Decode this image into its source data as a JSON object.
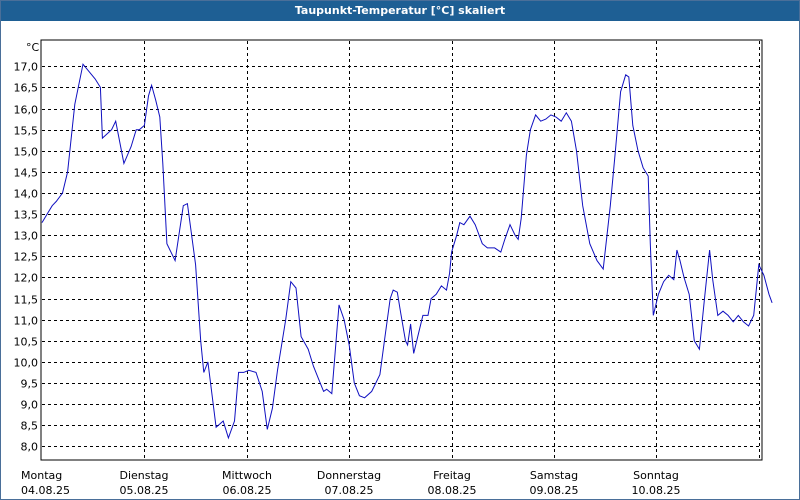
{
  "window": {
    "title": "Taupunkt-Temperatur [°C] skaliert"
  },
  "colors": {
    "title_bar": "#1e5f94",
    "line": "#1010c0",
    "grid": "#000000"
  },
  "chart_data": {
    "type": "line",
    "title": "Taupunkt-Temperatur [°C] skaliert",
    "ylabel": "°C",
    "ylim": [
      7.7,
      17.6
    ],
    "xlim": [
      0,
      7
    ],
    "grid": true,
    "yticks": [
      8.0,
      8.5,
      9.0,
      9.5,
      10.0,
      10.5,
      11.0,
      11.5,
      12.0,
      12.5,
      13.0,
      13.5,
      14.0,
      14.5,
      15.0,
      15.5,
      16.0,
      16.5,
      17.0
    ],
    "ytick_labels": [
      "8,0",
      "8,5",
      "9,0",
      "9,5",
      "10,0",
      "10,5",
      "11,0",
      "11,5",
      "12,0",
      "12,5",
      "13,0",
      "13,5",
      "14,0",
      "14,5",
      "15,0",
      "15,5",
      "16,0",
      "16,5",
      "17,0"
    ],
    "xticks": [
      {
        "day": "Montag",
        "date": "04.08.25"
      },
      {
        "day": "Dienstag",
        "date": "05.08.25"
      },
      {
        "day": "Mittwoch",
        "date": "06.08.25"
      },
      {
        "day": "Donnerstag",
        "date": "07.08.25"
      },
      {
        "day": "Freitag",
        "date": "08.08.25"
      },
      {
        "day": "Samstag",
        "date": "09.08.25"
      },
      {
        "day": "Sonntag",
        "date": "10.08.25"
      }
    ],
    "series": [
      {
        "values": [
          [
            0.0,
            13.3
          ],
          [
            0.05,
            13.5
          ],
          [
            0.1,
            13.7
          ],
          [
            0.14,
            13.8
          ],
          [
            0.2,
            14.0
          ],
          [
            0.25,
            14.5
          ],
          [
            0.32,
            16.1
          ],
          [
            0.4,
            17.05
          ],
          [
            0.52,
            16.7
          ],
          [
            0.57,
            16.5
          ],
          [
            0.59,
            15.3
          ],
          [
            0.68,
            15.5
          ],
          [
            0.72,
            15.7
          ],
          [
            0.8,
            14.7
          ],
          [
            0.87,
            15.1
          ],
          [
            0.92,
            15.5
          ],
          [
            0.95,
            15.5
          ],
          [
            1.0,
            15.6
          ],
          [
            1.04,
            16.3
          ],
          [
            1.07,
            16.55
          ],
          [
            1.11,
            16.2
          ],
          [
            1.15,
            15.8
          ],
          [
            1.18,
            14.7
          ],
          [
            1.22,
            12.8
          ],
          [
            1.3,
            12.4
          ],
          [
            1.38,
            13.7
          ],
          [
            1.42,
            13.75
          ],
          [
            1.5,
            12.3
          ],
          [
            1.55,
            10.5
          ],
          [
            1.58,
            9.75
          ],
          [
            1.62,
            10.0
          ],
          [
            1.7,
            8.45
          ],
          [
            1.77,
            8.6
          ],
          [
            1.82,
            8.2
          ],
          [
            1.88,
            8.6
          ],
          [
            1.92,
            9.75
          ],
          [
            1.97,
            9.75
          ],
          [
            2.02,
            9.8
          ],
          [
            2.09,
            9.75
          ],
          [
            2.15,
            9.3
          ],
          [
            2.2,
            8.4
          ],
          [
            2.25,
            8.9
          ],
          [
            2.3,
            9.8
          ],
          [
            2.38,
            11.0
          ],
          [
            2.43,
            11.9
          ],
          [
            2.48,
            11.75
          ],
          [
            2.53,
            10.6
          ],
          [
            2.6,
            10.3
          ],
          [
            2.65,
            9.9
          ],
          [
            2.7,
            9.6
          ],
          [
            2.75,
            9.3
          ],
          [
            2.78,
            9.35
          ],
          [
            2.83,
            9.25
          ],
          [
            2.9,
            11.35
          ],
          [
            2.95,
            11.0
          ],
          [
            3.0,
            10.4
          ],
          [
            3.05,
            9.5
          ],
          [
            3.1,
            9.2
          ],
          [
            3.15,
            9.15
          ],
          [
            3.22,
            9.3
          ],
          [
            3.3,
            9.7
          ],
          [
            3.35,
            10.6
          ],
          [
            3.4,
            11.5
          ],
          [
            3.43,
            11.7
          ],
          [
            3.47,
            11.65
          ],
          [
            3.5,
            11.2
          ],
          [
            3.55,
            10.5
          ],
          [
            3.57,
            10.4
          ],
          [
            3.6,
            10.9
          ],
          [
            3.63,
            10.2
          ],
          [
            3.68,
            10.7
          ],
          [
            3.72,
            11.1
          ],
          [
            3.77,
            11.1
          ],
          [
            3.8,
            11.5
          ],
          [
            3.85,
            11.6
          ],
          [
            3.9,
            11.8
          ],
          [
            3.95,
            11.7
          ],
          [
            3.98,
            12.1
          ],
          [
            4.0,
            12.6
          ],
          [
            4.05,
            13.0
          ],
          [
            4.08,
            13.3
          ],
          [
            4.12,
            13.25
          ],
          [
            4.18,
            13.45
          ],
          [
            4.23,
            13.25
          ],
          [
            4.3,
            12.8
          ],
          [
            4.35,
            12.7
          ],
          [
            4.42,
            12.7
          ],
          [
            4.48,
            12.6
          ],
          [
            4.52,
            12.9
          ],
          [
            4.57,
            13.25
          ],
          [
            4.62,
            13.0
          ],
          [
            4.65,
            12.9
          ],
          [
            4.68,
            13.4
          ],
          [
            4.73,
            14.9
          ],
          [
            4.77,
            15.5
          ],
          [
            4.82,
            15.85
          ],
          [
            4.87,
            15.7
          ],
          [
            4.92,
            15.75
          ],
          [
            4.97,
            15.85
          ],
          [
            5.02,
            15.8
          ],
          [
            5.07,
            15.7
          ],
          [
            5.12,
            15.9
          ],
          [
            5.17,
            15.7
          ],
          [
            5.22,
            15.0
          ],
          [
            5.28,
            13.7
          ],
          [
            5.35,
            12.8
          ],
          [
            5.42,
            12.4
          ],
          [
            5.48,
            12.2
          ],
          [
            5.55,
            13.7
          ],
          [
            5.6,
            15.0
          ],
          [
            5.65,
            16.4
          ],
          [
            5.7,
            16.8
          ],
          [
            5.73,
            16.75
          ],
          [
            5.77,
            15.6
          ],
          [
            5.82,
            15.0
          ],
          [
            5.87,
            14.6
          ],
          [
            5.92,
            14.4
          ],
          [
            5.94,
            12.8
          ],
          [
            5.97,
            11.1
          ],
          [
            6.02,
            11.6
          ],
          [
            6.07,
            11.9
          ],
          [
            6.12,
            12.05
          ],
          [
            6.17,
            11.95
          ],
          [
            6.2,
            12.65
          ],
          [
            6.23,
            12.4
          ],
          [
            6.27,
            12.0
          ],
          [
            6.32,
            11.6
          ],
          [
            6.37,
            10.5
          ],
          [
            6.42,
            10.3
          ],
          [
            6.47,
            11.5
          ],
          [
            6.52,
            12.65
          ],
          [
            6.55,
            11.95
          ],
          [
            6.6,
            11.1
          ],
          [
            6.65,
            11.2
          ],
          [
            6.7,
            11.1
          ],
          [
            6.75,
            10.95
          ],
          [
            6.8,
            11.1
          ],
          [
            6.85,
            10.95
          ],
          [
            6.9,
            10.85
          ],
          [
            6.95,
            11.1
          ],
          [
            7.0,
            12.3
          ],
          [
            7.05,
            12.05
          ],
          [
            7.1,
            11.6
          ],
          [
            7.13,
            11.4
          ]
        ]
      }
    ]
  }
}
